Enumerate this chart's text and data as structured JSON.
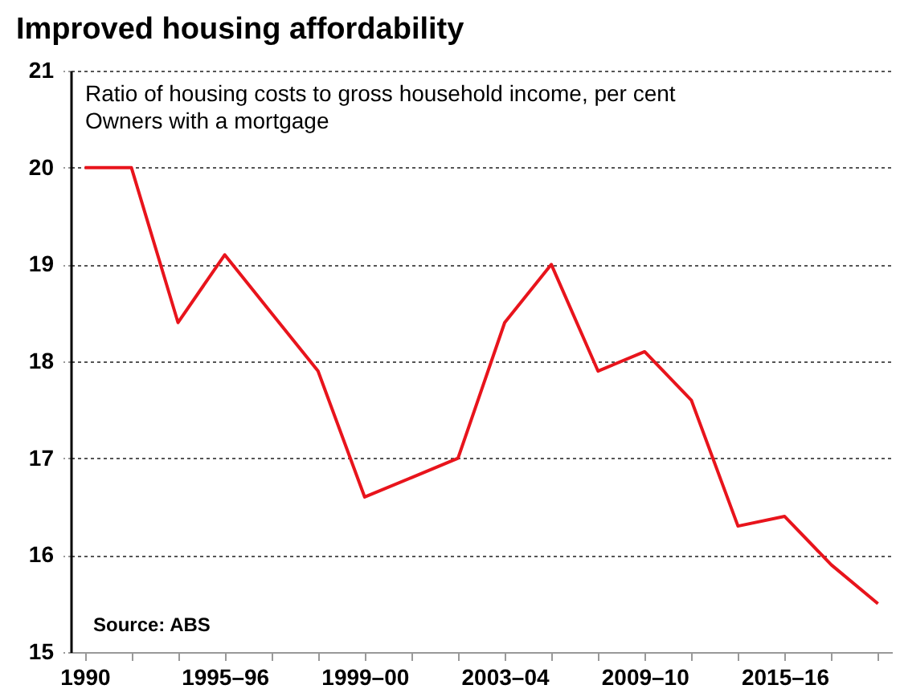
{
  "chart_data": {
    "type": "line",
    "title": "Improved housing affordability",
    "subtitle": [
      "Ratio of housing costs to gross household income, per cent",
      "Owners with a mortgage"
    ],
    "annotations": [
      "Source: ABS"
    ],
    "categories": [
      "1990",
      null,
      null,
      "1995–96",
      null,
      null,
      "1999–00",
      null,
      null,
      "2003–04",
      null,
      null,
      "2009–10",
      null,
      null,
      "2015–16",
      null,
      null
    ],
    "series": [
      {
        "color": "#e8141c",
        "values": [
          20.0,
          20.0,
          18.4,
          19.1,
          18.5,
          17.9,
          16.6,
          16.8,
          17.0,
          18.4,
          19.0,
          17.9,
          18.1,
          17.6,
          16.3,
          16.4,
          15.9,
          15.5
        ]
      }
    ],
    "ylim": [
      15,
      21
    ],
    "yticks": [
      15,
      16,
      17,
      18,
      19,
      20,
      21
    ],
    "grid": "y",
    "marker": "none",
    "line_style": "solid"
  }
}
